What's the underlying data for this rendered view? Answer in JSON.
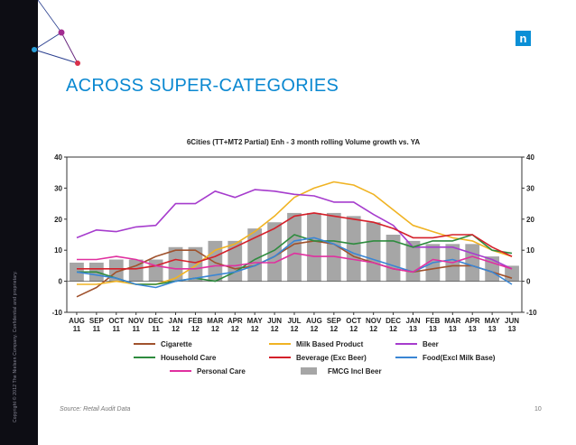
{
  "slide": {
    "title": "ACROSS SUPER-CATEGORIES",
    "source": "Source: Retail Audit Data",
    "page_number": "10",
    "logo_glyph": "n",
    "copyright": "Copyright © 2012 The Nielsen Company. Confidential and proprietary."
  },
  "colors": {
    "accent": "#0a88d1",
    "left_bar": "#0d0d14"
  },
  "chart_data": {
    "type": "bar",
    "title": "6Cities (TT+MT2 Partial) Enh - 3 month rolling Volume growth vs. YA",
    "categories": [
      {
        "m": "AUG",
        "y": "11"
      },
      {
        "m": "SEP",
        "y": "11"
      },
      {
        "m": "OCT",
        "y": "11"
      },
      {
        "m": "NOV",
        "y": "11"
      },
      {
        "m": "DEC",
        "y": "11"
      },
      {
        "m": "JAN",
        "y": "12"
      },
      {
        "m": "FEB",
        "y": "12"
      },
      {
        "m": "MAR",
        "y": "12"
      },
      {
        "m": "APR",
        "y": "12"
      },
      {
        "m": "MAY",
        "y": "12"
      },
      {
        "m": "JUN",
        "y": "12"
      },
      {
        "m": "JUL",
        "y": "12"
      },
      {
        "m": "AUG",
        "y": "12"
      },
      {
        "m": "SEP",
        "y": "12"
      },
      {
        "m": "OCT",
        "y": "12"
      },
      {
        "m": "NOV",
        "y": "12"
      },
      {
        "m": "DEC",
        "y": "12"
      },
      {
        "m": "JAN",
        "y": "13"
      },
      {
        "m": "FEB",
        "y": "13"
      },
      {
        "m": "MAR",
        "y": "13"
      },
      {
        "m": "APR",
        "y": "13"
      },
      {
        "m": "MAY",
        "y": "13"
      },
      {
        "m": "JUN",
        "y": "13"
      }
    ],
    "ylim": [
      -10,
      40
    ],
    "yticks": [
      "-10",
      "0",
      "10",
      "20",
      "30",
      "40"
    ],
    "yticks_right": [
      "-10",
      "0",
      "10",
      "20",
      "30",
      "40"
    ],
    "gridlines": false,
    "bars": {
      "name": "FMCG Incl Beer",
      "color": "#a6a6a6",
      "values": [
        6,
        6,
        7,
        7,
        7,
        11,
        11,
        13,
        13,
        17,
        19,
        22,
        22,
        22,
        21,
        19,
        15,
        13,
        12,
        12,
        12,
        8,
        5
      ]
    },
    "lines": [
      {
        "name": "Cigarette",
        "color": "#a0522d",
        "values": [
          -5,
          -2,
          3,
          5,
          8,
          10,
          10,
          6,
          4,
          5,
          8,
          12,
          13,
          12,
          8,
          6,
          4,
          3,
          4,
          5,
          5,
          3,
          1
        ]
      },
      {
        "name": "Milk Based Product",
        "color": "#f0b323",
        "values": [
          -1,
          -1,
          0,
          -1,
          -1,
          1,
          5,
          10,
          12,
          16,
          21,
          27,
          30,
          32,
          31,
          28,
          23,
          18,
          16,
          14,
          13,
          10,
          8
        ]
      },
      {
        "name": "Beer",
        "color": "#a63ccd",
        "values": [
          14,
          16.5,
          16,
          17.5,
          18,
          25,
          25,
          29,
          27,
          29.5,
          29,
          28,
          27.5,
          25.5,
          25.5,
          21.5,
          18,
          11,
          11,
          11,
          9,
          7,
          4
        ]
      },
      {
        "name": "Household Care",
        "color": "#2e8b3e",
        "values": [
          3,
          3,
          1,
          -1,
          -1,
          0,
          1,
          0,
          3,
          7,
          10,
          15,
          13,
          13,
          12,
          13,
          13,
          11,
          13,
          13,
          15,
          10,
          9
        ]
      },
      {
        "name": "Beverage (Exc Beer)",
        "color": "#d4202a",
        "values": [
          4,
          4,
          4,
          4,
          5,
          7,
          6,
          8,
          11,
          14,
          17,
          21,
          22,
          21,
          20,
          19,
          17,
          14,
          14,
          15,
          15,
          11,
          8
        ]
      },
      {
        "name": "Food(Excl Milk Base)",
        "color": "#3a86d4",
        "values": [
          3,
          2,
          1,
          -1,
          -2,
          0,
          1,
          2,
          3,
          5,
          8,
          13,
          14,
          12,
          9,
          7,
          5,
          3,
          6,
          7,
          5,
          3,
          -1
        ]
      },
      {
        "name": "Personal Care",
        "color": "#e0309f",
        "values": [
          7,
          7,
          8,
          7,
          5,
          4,
          4,
          5,
          5,
          6,
          6,
          9,
          8,
          8,
          7,
          6,
          4,
          3,
          7,
          6,
          8,
          6,
          4
        ]
      }
    ],
    "legend": [
      {
        "name": "Cigarette",
        "kind": "line",
        "color": "#a0522d"
      },
      {
        "name": "Milk Based Product",
        "kind": "line",
        "color": "#f0b323"
      },
      {
        "name": "Beer",
        "kind": "line",
        "color": "#a63ccd"
      },
      {
        "name": "Household Care",
        "kind": "line",
        "color": "#2e8b3e"
      },
      {
        "name": "Beverage (Exc Beer)",
        "kind": "line",
        "color": "#d4202a"
      },
      {
        "name": "Food(Excl Milk Base)",
        "kind": "line",
        "color": "#3a86d4"
      },
      {
        "name": "Personal Care",
        "kind": "line",
        "color": "#e0309f"
      },
      {
        "name": "FMCG Incl Beer",
        "kind": "bar",
        "color": "#a6a6a6"
      }
    ],
    "legend_position": "bottom"
  }
}
